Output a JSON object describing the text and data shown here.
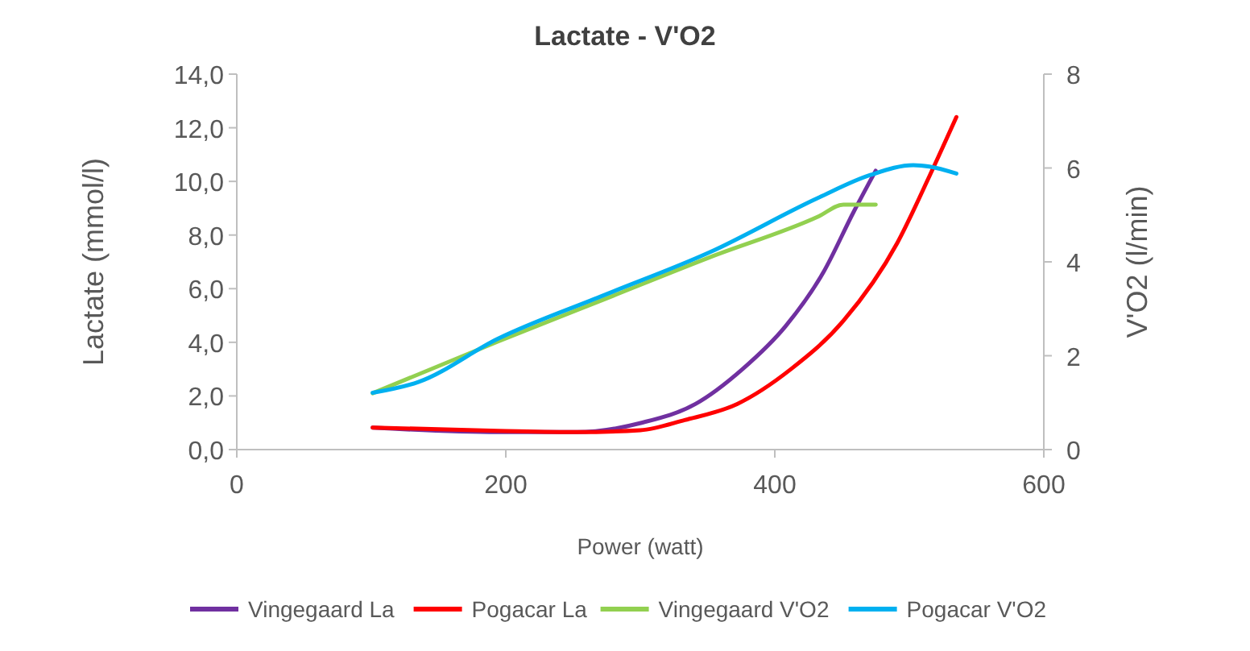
{
  "chart_data": {
    "type": "line",
    "title": "Lactate - V'O2",
    "xlabel": "Power (watt)",
    "ylabel": "Lactate (mmol/l)",
    "y2label": "V'O2 (l/min)",
    "xlim": [
      0,
      600
    ],
    "xticks": [
      0,
      200,
      400,
      600
    ],
    "ylim": [
      0,
      14
    ],
    "yticks": [
      {
        "value": 0,
        "label": "0,0"
      },
      {
        "value": 2,
        "label": "2,0"
      },
      {
        "value": 4,
        "label": "4,0"
      },
      {
        "value": 6,
        "label": "6,0"
      },
      {
        "value": 8,
        "label": "8,0"
      },
      {
        "value": 10,
        "label": "10,0"
      },
      {
        "value": 12,
        "label": "12,0"
      },
      {
        "value": 14,
        "label": "14,0"
      }
    ],
    "y2lim": [
      0,
      8
    ],
    "y2ticks": [
      0,
      2,
      4,
      6,
      8
    ],
    "grid": false,
    "legend": "bottom",
    "marker": "none",
    "series": [
      {
        "name": "Vingegaard La",
        "color": "#7030a0",
        "x": [
          101,
          194,
          253,
          301,
          341,
          376,
          408,
          436,
          459,
          475
        ],
        "values": [
          0.82,
          0.65,
          0.65,
          1.0,
          1.7,
          3.0,
          4.6,
          6.6,
          8.9,
          10.4
        ]
      },
      {
        "name": "Pogacar La",
        "color": "#ff0000",
        "x": [
          101,
          194,
          253,
          300,
          333,
          372,
          412,
          451,
          491,
          515,
          535
        ],
        "values": [
          0.82,
          0.7,
          0.65,
          0.72,
          1.1,
          1.7,
          3.0,
          4.8,
          7.7,
          10.2,
          12.4
        ]
      },
      {
        "name": "Vingegaard V'O2",
        "color": "#92d050",
        "axis": "y2",
        "x": [
          101,
          194,
          273,
          352,
          432,
          451,
          475
        ],
        "values": [
          1.2,
          2.3,
          3.2,
          4.1,
          4.96,
          5.22,
          5.22
        ]
      },
      {
        "name": "Pogacar V'O2",
        "color": "#00b0f0",
        "axis": "y2",
        "x": [
          101,
          135,
          194,
          273,
          352,
          432,
          471,
          503,
          515,
          535
        ],
        "values": [
          1.21,
          1.44,
          2.36,
          3.29,
          4.21,
          5.36,
          5.85,
          6.06,
          6.03,
          5.88
        ]
      }
    ]
  }
}
